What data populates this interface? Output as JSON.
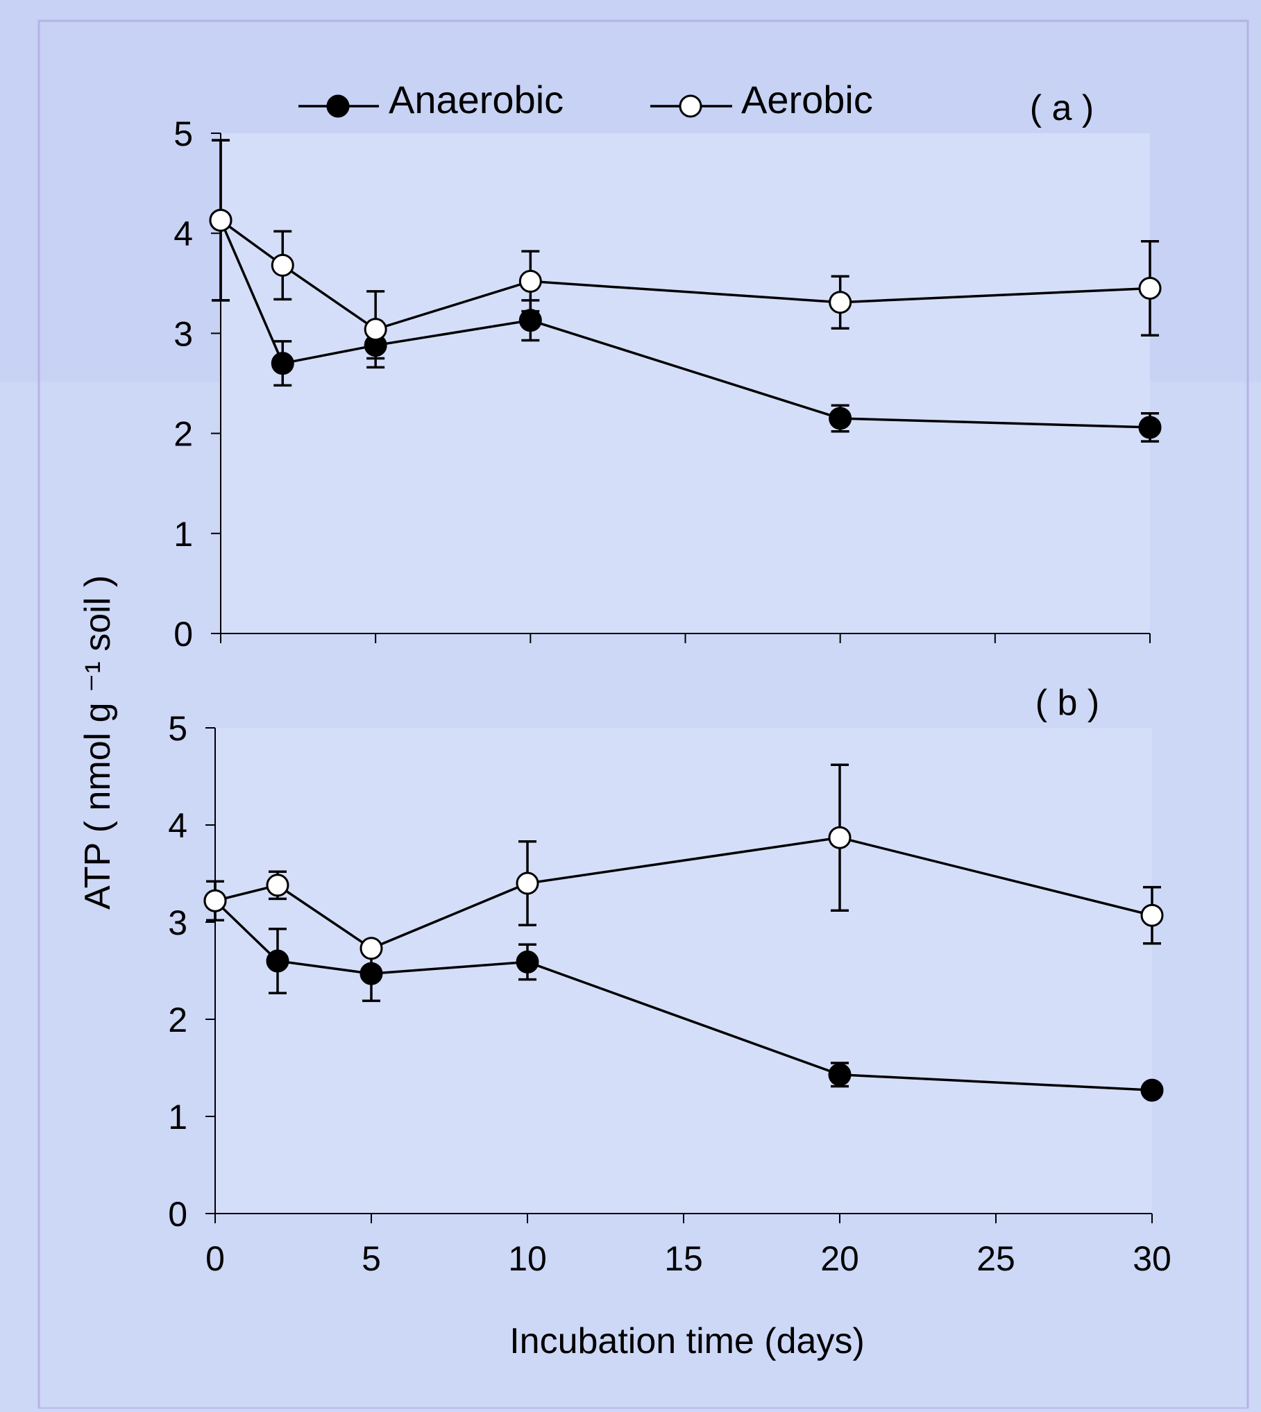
{
  "colors": {
    "background": "#cdd7f6",
    "band": "#c7d2f4",
    "plot_fill": "#d5def9",
    "frame": "#b6b2e6",
    "ink": "#000000",
    "open_marker_fill": "#ffffff"
  },
  "legend": {
    "anaerobic": "Anaerobic",
    "aerobic": "Aerobic"
  },
  "shared_ylabel": "ATP ( nmol g ⁻¹ soil )",
  "shared_xlabel": "Incubation time (days)",
  "chart_data": [
    {
      "type": "line",
      "panel_label": "( a )",
      "x": [
        0,
        2,
        5,
        10,
        20,
        30
      ],
      "xlim": [
        0,
        30
      ],
      "xticks": [
        0,
        5,
        10,
        15,
        20,
        25,
        30
      ],
      "show_xtick_labels": false,
      "ylim": [
        0,
        5
      ],
      "yticks": [
        0,
        1,
        2,
        3,
        4,
        5
      ],
      "grid": false,
      "legend_position": "top",
      "series": [
        {
          "name": "Anaerobic",
          "marker": "filled-circle",
          "values": [
            4.13,
            2.7,
            2.88,
            3.13,
            2.15,
            2.06
          ],
          "error": [
            0.8,
            0.22,
            0.13,
            0.2,
            0.13,
            0.14
          ]
        },
        {
          "name": "Aerobic",
          "marker": "open-circle",
          "values": [
            4.13,
            3.68,
            3.04,
            3.52,
            3.31,
            3.45
          ],
          "error": [
            0.8,
            0.34,
            0.38,
            0.3,
            0.26,
            0.47
          ]
        }
      ]
    },
    {
      "type": "line",
      "panel_label": "( b )",
      "x": [
        0,
        2,
        5,
        10,
        20,
        30
      ],
      "xlim": [
        0,
        30
      ],
      "xticks": [
        0,
        5,
        10,
        15,
        20,
        25,
        30
      ],
      "show_xtick_labels": true,
      "ylim": [
        0,
        5
      ],
      "yticks": [
        0,
        1,
        2,
        3,
        4,
        5
      ],
      "grid": false,
      "series": [
        {
          "name": "Anaerobic",
          "marker": "filled-circle",
          "values": [
            3.22,
            2.6,
            2.47,
            2.59,
            1.43,
            1.27
          ],
          "error": [
            0.2,
            0.33,
            0.28,
            0.18,
            0.12,
            0.06
          ]
        },
        {
          "name": "Aerobic",
          "marker": "open-circle",
          "values": [
            3.22,
            3.38,
            2.73,
            3.4,
            3.87,
            3.07
          ],
          "error": [
            0.2,
            0.14,
            0.06,
            0.43,
            0.75,
            0.29
          ]
        }
      ]
    }
  ]
}
